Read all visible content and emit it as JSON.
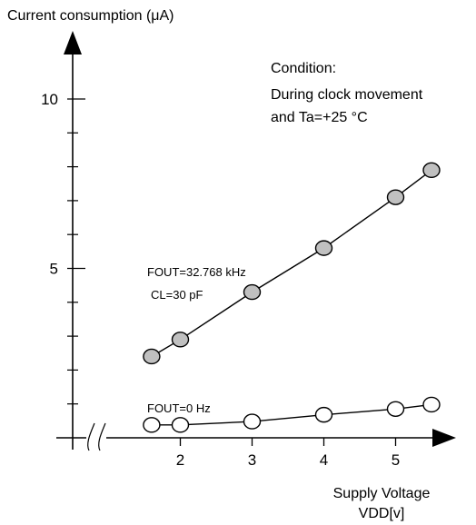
{
  "chart_data": {
    "type": "line",
    "ylabel": "Current consumption (μA)",
    "xlabel_line1": "Supply Voltage",
    "xlabel_line2": "VDD[v]",
    "condition_title": "Condition:",
    "condition_line1": "During clock movement",
    "condition_line2": "and Ta=+25 °C",
    "xlim": [
      0.5,
      6.0
    ],
    "ylim": [
      0,
      12.0
    ],
    "x_ticks": [
      2,
      3,
      4,
      5
    ],
    "x_tick_labels": [
      "2",
      "3",
      "4",
      "5"
    ],
    "y_major_ticks": [
      5,
      10
    ],
    "y_tick_labels": [
      "5",
      "10"
    ],
    "y_minor_ticks": [
      1,
      2,
      3,
      4,
      6,
      7,
      8,
      9
    ],
    "x_axis_break": true,
    "grid": false,
    "series": [
      {
        "label_line1": "FOUT=32.768 kHz",
        "label_line2": "CL=30 pF",
        "marker_fill": "#c0c0c0",
        "x": [
          1.6,
          2.0,
          3.0,
          4.0,
          5.0,
          5.5
        ],
        "y": [
          2.4,
          2.9,
          4.3,
          5.6,
          7.1,
          7.9
        ]
      },
      {
        "label_line1": "FOUT=0 Hz",
        "marker_fill": "#ffffff",
        "x": [
          1.6,
          2.0,
          3.0,
          4.0,
          5.0,
          5.5
        ],
        "y": [
          0.38,
          0.38,
          0.48,
          0.68,
          0.85,
          0.98
        ]
      }
    ]
  }
}
